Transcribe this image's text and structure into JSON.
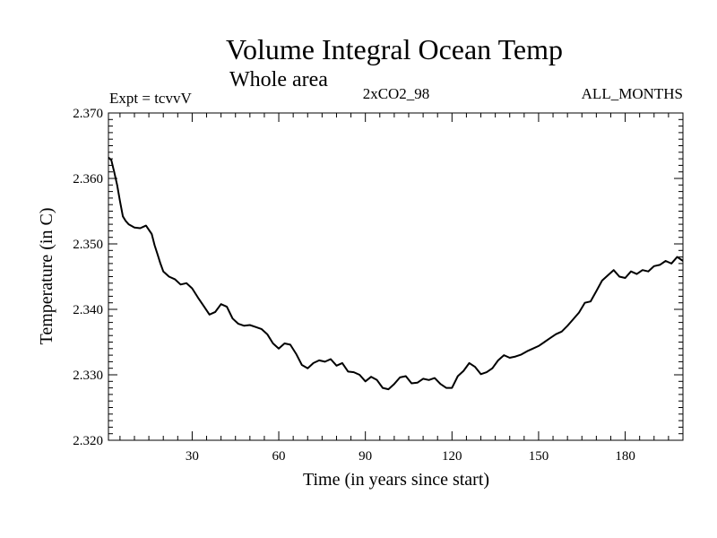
{
  "chart_data": {
    "type": "line",
    "title": "Volume Integral Ocean Temp",
    "subtitle": "Whole area",
    "labels": {
      "left": "Expt = tcvvV",
      "center": "2xCO2_98",
      "right": "ALL_MONTHS"
    },
    "xlabel": "Time (in years since start)",
    "ylabel": "Temperature (in C)",
    "xlim": [
      1,
      200
    ],
    "ylim": [
      2.32,
      2.37
    ],
    "xticks": [
      30,
      60,
      90,
      120,
      150,
      180
    ],
    "xtick_labels": [
      "30",
      "60",
      "90",
      "120",
      "150",
      "180"
    ],
    "yticks": [
      2.32,
      2.33,
      2.34,
      2.35,
      2.36,
      2.37
    ],
    "ytick_labels": [
      "2.320",
      "2.330",
      "2.340",
      "2.350",
      "2.360",
      "2.370"
    ],
    "grid": false,
    "series": [
      {
        "color": "#000000",
        "x": [
          1,
          2,
          3,
          4,
          5,
          6,
          7,
          8,
          10,
          12,
          14,
          16,
          17,
          18,
          19,
          20,
          22,
          24,
          26,
          28,
          30,
          32,
          34,
          36,
          38,
          40,
          42,
          44,
          46,
          48,
          50,
          52,
          54,
          56,
          58,
          60,
          62,
          64,
          66,
          68,
          70,
          72,
          74,
          76,
          78,
          80,
          82,
          84,
          86,
          88,
          90,
          92,
          94,
          96,
          98,
          100,
          102,
          104,
          106,
          108,
          110,
          112,
          114,
          116,
          118,
          120,
          122,
          124,
          126,
          128,
          130,
          132,
          134,
          136,
          138,
          140,
          142,
          144,
          146,
          148,
          150,
          152,
          154,
          156,
          158,
          160,
          162,
          164,
          166,
          168,
          170,
          172,
          174,
          176,
          178,
          180,
          182,
          184,
          186,
          188,
          190,
          192,
          194,
          196,
          198,
          200
        ],
        "values": [
          2.3632,
          2.3628,
          2.361,
          2.359,
          2.3565,
          2.3542,
          2.3535,
          2.353,
          2.3525,
          2.3524,
          2.3528,
          2.3515,
          2.3498,
          2.3484,
          2.347,
          2.3458,
          2.345,
          2.3446,
          2.3438,
          2.344,
          2.3432,
          2.3418,
          2.3405,
          2.3392,
          2.3396,
          2.3408,
          2.3404,
          2.3386,
          2.3378,
          2.3375,
          2.3376,
          2.3373,
          2.337,
          2.3362,
          2.3348,
          2.334,
          2.3348,
          2.3346,
          2.3332,
          2.3315,
          2.331,
          2.3318,
          2.3322,
          2.332,
          2.3324,
          2.3314,
          2.3318,
          2.3305,
          2.3304,
          2.33,
          2.329,
          2.3297,
          2.3292,
          2.328,
          2.3278,
          2.3286,
          2.3296,
          2.3298,
          2.3287,
          2.3288,
          2.3294,
          2.3292,
          2.3295,
          2.3286,
          2.328,
          2.328,
          2.3298,
          2.3306,
          2.3318,
          2.3312,
          2.3301,
          2.3304,
          2.331,
          2.3322,
          2.333,
          2.3326,
          2.3328,
          2.3331,
          2.3336,
          2.334,
          2.3344,
          2.335,
          2.3356,
          2.3362,
          2.3366,
          2.3375,
          2.3385,
          2.3395,
          2.341,
          2.3412,
          2.3428,
          2.3444,
          2.3452,
          2.346,
          2.345,
          2.3448,
          2.3458,
          2.3454,
          2.346,
          2.3458,
          2.3466,
          2.3468,
          2.3474,
          2.347,
          2.348,
          2.3474
        ]
      }
    ]
  }
}
